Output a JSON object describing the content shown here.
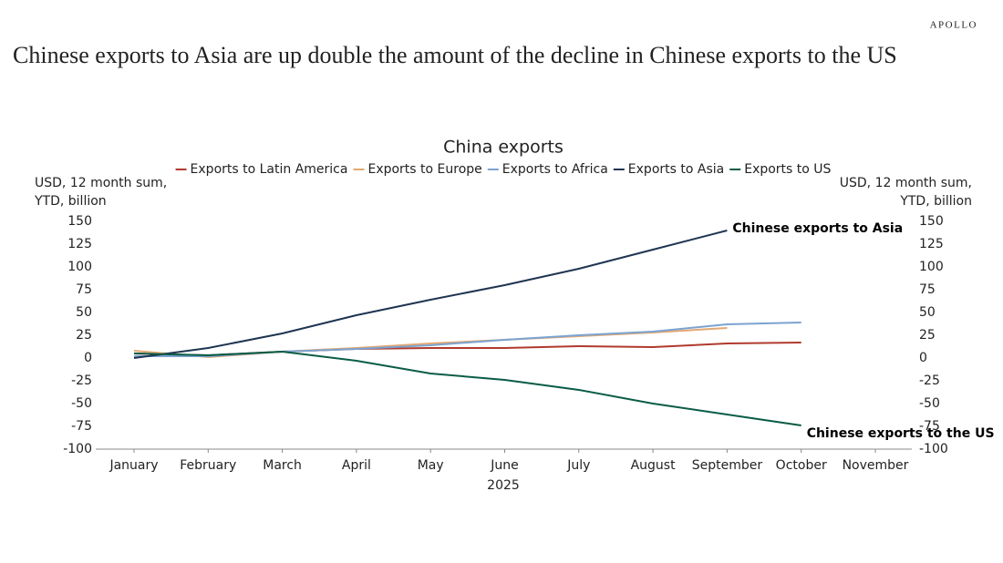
{
  "header": {
    "brand": "APOLLO",
    "headline": "Chinese exports to Asia are up double the amount of the decline in Chinese exports to the US"
  },
  "chart_data": {
    "type": "line",
    "title": "China exports",
    "categories": [
      "January",
      "February",
      "March",
      "April",
      "May",
      "June",
      "July",
      "August",
      "September",
      "October",
      "November"
    ],
    "xlabel": "2025",
    "ylabel": [
      "USD, 12 month sum,",
      "YTD, billion"
    ],
    "y2label": [
      "USD, 12 month sum,",
      "YTD, billion"
    ],
    "ylim": [
      -100,
      150
    ],
    "yticks": [
      -100,
      -75,
      -50,
      -25,
      0,
      25,
      50,
      75,
      100,
      125,
      150
    ],
    "y2lim": [
      -100,
      150
    ],
    "y2ticks": [
      -100,
      -75,
      -50,
      -25,
      0,
      25,
      50,
      75,
      100,
      125,
      150
    ],
    "legend": "top",
    "series": [
      {
        "name": "Exports to Latin America",
        "color": "#b03a2e",
        "values": [
          5,
          3,
          7,
          10,
          11,
          11,
          13,
          12,
          16,
          17,
          null
        ]
      },
      {
        "name": "Exports to Europe",
        "color": "#e3a873",
        "values": [
          8,
          1,
          7,
          11,
          16,
          20,
          24,
          28,
          33,
          null,
          null
        ]
      },
      {
        "name": "Exports to Africa",
        "color": "#7ba3d1",
        "values": [
          2,
          2,
          7,
          10,
          14,
          20,
          25,
          29,
          37,
          39,
          null
        ]
      },
      {
        "name": "Exports to Asia",
        "color": "#1f3552",
        "values": [
          0,
          11,
          27,
          47,
          64,
          80,
          98,
          119,
          140,
          null,
          null
        ]
      },
      {
        "name": "Exports to US",
        "color": "#0a5c46",
        "values": [
          5,
          3,
          7,
          -3,
          -17,
          -24,
          -35,
          -50,
          -62,
          -74,
          null
        ]
      }
    ],
    "annotations": [
      {
        "text": "Chinese exports to Asia",
        "series": 3,
        "index": 8
      },
      {
        "text": "Chinese exports to the US",
        "series": 4,
        "index": 9
      }
    ]
  }
}
